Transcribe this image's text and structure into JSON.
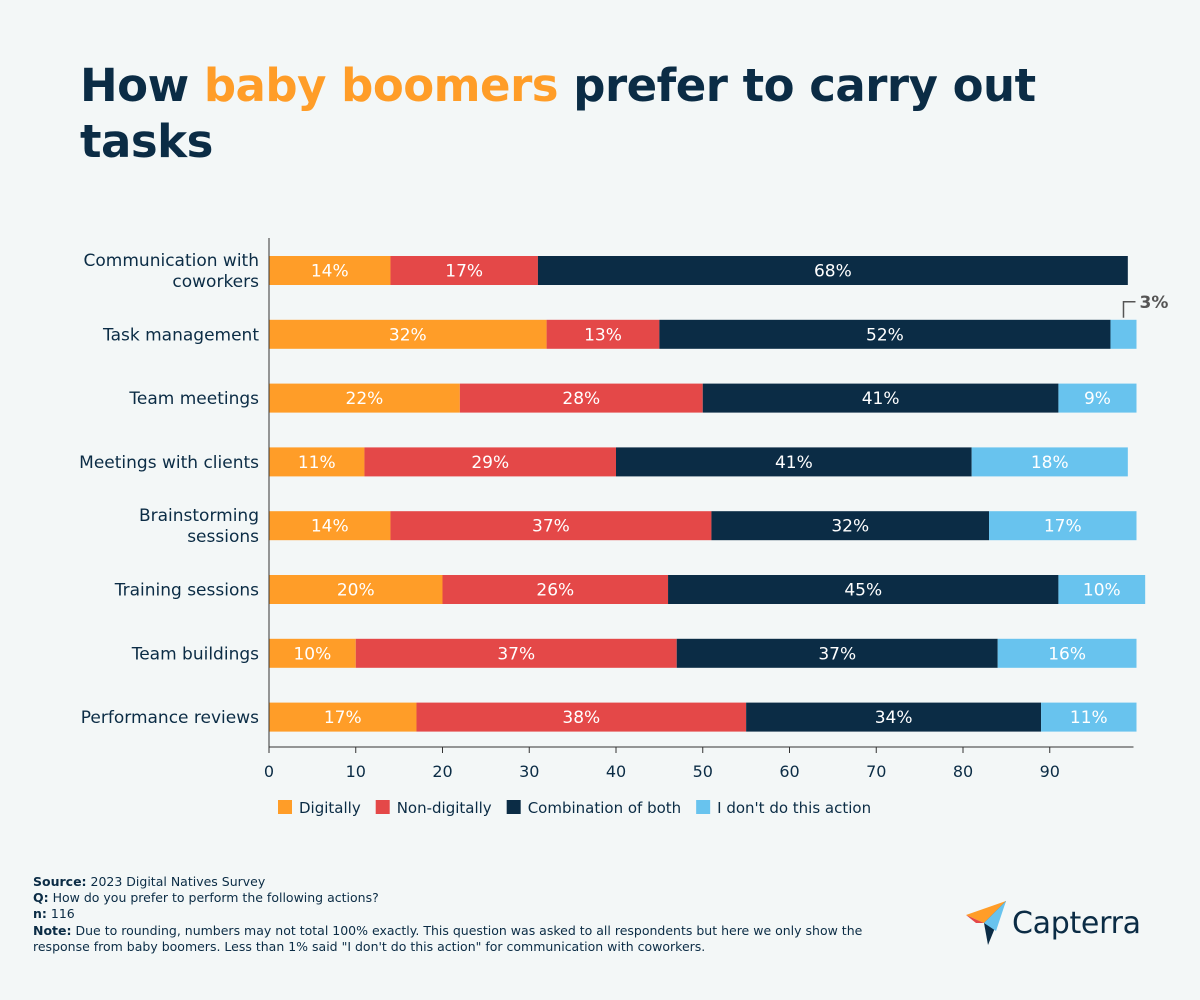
{
  "title": {
    "prefix": "How ",
    "highlight": "baby boomers",
    "suffix": " prefer to carry out tasks"
  },
  "colors": {
    "digitally": "#ff9d28",
    "non_digitally": "#e44848",
    "combination": "#0b2c45",
    "dont_do": "#68c3ee",
    "background": "#f3f7f7",
    "text": "#0b2c45"
  },
  "chart_data": {
    "type": "bar",
    "orientation": "horizontal",
    "stacked": true,
    "categories": [
      [
        "Communication with",
        "coworkers"
      ],
      [
        "Task management"
      ],
      [
        "Team meetings"
      ],
      [
        "Meetings with clients"
      ],
      [
        "Brainstorming",
        "sessions"
      ],
      [
        "Training sessions"
      ],
      [
        "Team buildings"
      ],
      [
        "Performance reviews"
      ]
    ],
    "series": [
      {
        "name": "Digitally",
        "values": [
          14,
          32,
          22,
          11,
          14,
          20,
          10,
          17
        ]
      },
      {
        "name": "Non-digitally",
        "values": [
          17,
          13,
          28,
          29,
          37,
          26,
          37,
          38
        ]
      },
      {
        "name": "Combination of both",
        "values": [
          68,
          52,
          41,
          41,
          32,
          45,
          37,
          34
        ]
      },
      {
        "name": "I don't do this action",
        "values": [
          0,
          3,
          9,
          18,
          17,
          10,
          16,
          11
        ]
      }
    ],
    "callout": "3%",
    "xlim": [
      0,
      100
    ],
    "xticks": [
      0,
      10,
      20,
      30,
      40,
      50,
      60,
      70,
      80,
      90
    ],
    "legend_position": "bottom",
    "grid": false
  },
  "logo": {
    "text": "Capterra"
  },
  "footer": {
    "source_label": "Source:",
    "source_text": " 2023 Digital Natives Survey",
    "q_label": "Q:",
    "q_text": " How do you prefer to perform the following actions?",
    "n_label": "n:",
    "n_text": " 116",
    "note_label": "Note:",
    "note_text": "  Due to rounding, numbers may not total 100% exactly. This question was asked to all respondents but here we only show the response from baby boomers. Less than 1% said \"I don't do this action\" for communication with coworkers."
  }
}
